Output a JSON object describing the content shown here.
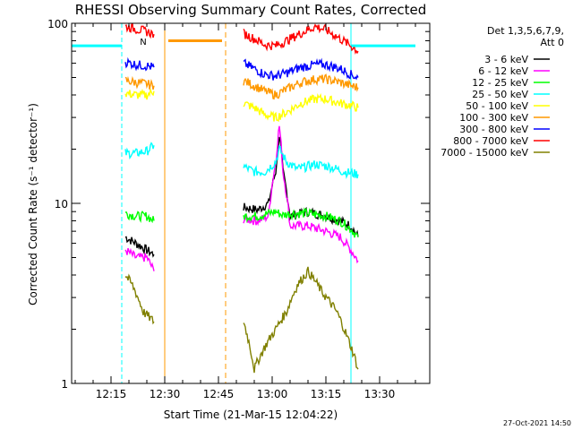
{
  "chart_data": {
    "type": "line",
    "title": "RHESSI Observing Summary Count Rates, Corrected",
    "xlabel": "Start Time (21-Mar-15 12:04:22)",
    "ylabel": "Corrected Count Rate (s⁻¹ detector⁻¹)",
    "yscale": "log",
    "ylim": [
      1,
      100
    ],
    "xlim_minutes": [
      "12:04",
      "13:44"
    ],
    "xticks": [
      "12:15",
      "12:30",
      "12:45",
      "13:00",
      "13:15",
      "13:30"
    ],
    "yticks": [
      "1",
      "10",
      "100"
    ],
    "legend_header": [
      "Det 1,3,5,6,7,9,",
      "Att 0"
    ],
    "legend_placement": "right",
    "flag_label": "N",
    "timestamp": "27-Oct-2021 14:50",
    "series": [
      {
        "name": "3 - 6 keV",
        "color": "#000000",
        "points": [
          [
            "12:19",
            6.5
          ],
          [
            "12:22",
            6.0
          ],
          [
            "12:25",
            5.5
          ],
          [
            "12:27",
            5.2
          ],
          [
            "12:52",
            9.5
          ],
          [
            "12:56",
            9.2
          ],
          [
            "12:59",
            10
          ],
          [
            "13:01",
            15
          ],
          [
            "13:02",
            24
          ],
          [
            "13:03",
            15
          ],
          [
            "13:05",
            8.5
          ],
          [
            "13:10",
            9
          ],
          [
            "13:15",
            8.5
          ],
          [
            "13:19",
            8
          ],
          [
            "13:22",
            7.5
          ],
          [
            "13:24",
            6.5
          ]
        ]
      },
      {
        "name": "6 - 12 keV",
        "color": "#ff00ff",
        "points": [
          [
            "12:19",
            5.5
          ],
          [
            "12:22",
            5.0
          ],
          [
            "12:25",
            5.0
          ],
          [
            "12:27",
            4.2
          ],
          [
            "12:52",
            8.2
          ],
          [
            "12:56",
            8.0
          ],
          [
            "12:59",
            8.5
          ],
          [
            "13:01",
            17
          ],
          [
            "13:02",
            27
          ],
          [
            "13:03",
            15
          ],
          [
            "13:05",
            7.5
          ],
          [
            "13:10",
            7.5
          ],
          [
            "13:15",
            7.0
          ],
          [
            "13:19",
            6.5
          ],
          [
            "13:22",
            5.5
          ],
          [
            "13:24",
            4.8
          ]
        ]
      },
      {
        "name": "12 - 25 keV",
        "color": "#00ff00",
        "points": [
          [
            "12:19",
            8.8
          ],
          [
            "12:22",
            8.5
          ],
          [
            "12:25",
            8.5
          ],
          [
            "12:27",
            8.0
          ],
          [
            "12:52",
            8.5
          ],
          [
            "12:56",
            8.5
          ],
          [
            "12:59",
            8.8
          ],
          [
            "13:01",
            9.0
          ],
          [
            "13:03",
            8.6
          ],
          [
            "13:05",
            8.8
          ],
          [
            "13:10",
            8.8
          ],
          [
            "13:15",
            8.5
          ],
          [
            "13:19",
            8.0
          ],
          [
            "13:22",
            7.2
          ],
          [
            "13:24",
            6.5
          ]
        ]
      },
      {
        "name": "25 - 50 keV",
        "color": "#00ffff",
        "points": [
          [
            "12:19",
            19
          ],
          [
            "12:22",
            19
          ],
          [
            "12:25",
            19.5
          ],
          [
            "12:27",
            21
          ],
          [
            "12:52",
            16
          ],
          [
            "12:55",
            15
          ],
          [
            "12:58",
            15
          ],
          [
            "13:01",
            17
          ],
          [
            "13:02",
            20
          ],
          [
            "13:04",
            17
          ],
          [
            "13:07",
            15.5
          ],
          [
            "13:12",
            16.5
          ],
          [
            "13:16",
            16
          ],
          [
            "13:20",
            15
          ],
          [
            "13:24",
            14.5
          ]
        ]
      },
      {
        "name": "50 - 100 keV",
        "color": "#ffff00",
        "points": [
          [
            "12:19",
            41
          ],
          [
            "12:22",
            40
          ],
          [
            "12:25",
            40
          ],
          [
            "12:27",
            42
          ],
          [
            "12:52",
            36
          ],
          [
            "12:55",
            34
          ],
          [
            "12:58",
            31
          ],
          [
            "13:01",
            30
          ],
          [
            "13:04",
            32
          ],
          [
            "13:08",
            36
          ],
          [
            "13:12",
            38
          ],
          [
            "13:15",
            38
          ],
          [
            "13:19",
            36
          ],
          [
            "13:22",
            35
          ],
          [
            "13:24",
            34
          ]
        ]
      },
      {
        "name": "100 - 300 keV",
        "color": "#ff9900",
        "points": [
          [
            "12:19",
            48
          ],
          [
            "12:22",
            47
          ],
          [
            "12:25",
            46
          ],
          [
            "12:27",
            45
          ],
          [
            "12:52",
            48
          ],
          [
            "12:55",
            45
          ],
          [
            "12:58",
            42
          ],
          [
            "13:01",
            40
          ],
          [
            "13:04",
            43
          ],
          [
            "13:08",
            47
          ],
          [
            "13:12",
            49
          ],
          [
            "13:15",
            49
          ],
          [
            "13:19",
            47
          ],
          [
            "13:22",
            45
          ],
          [
            "13:24",
            44
          ]
        ]
      },
      {
        "name": "300 - 800 keV",
        "color": "#0000ff",
        "points": [
          [
            "12:19",
            61
          ],
          [
            "12:22",
            59
          ],
          [
            "12:25",
            58
          ],
          [
            "12:27",
            57
          ],
          [
            "12:52",
            60
          ],
          [
            "12:55",
            56
          ],
          [
            "12:58",
            52
          ],
          [
            "13:01",
            51
          ],
          [
            "13:04",
            53
          ],
          [
            "13:08",
            57
          ],
          [
            "13:12",
            59
          ],
          [
            "13:15",
            59
          ],
          [
            "13:19",
            56
          ],
          [
            "13:22",
            52
          ],
          [
            "13:24",
            50
          ]
        ]
      },
      {
        "name": "800 - 7000 keV",
        "color": "#ff0000",
        "points": [
          [
            "12:19",
            96
          ],
          [
            "12:22",
            93
          ],
          [
            "12:25",
            90
          ],
          [
            "12:27",
            87
          ],
          [
            "12:52",
            88
          ],
          [
            "12:55",
            82
          ],
          [
            "12:58",
            76
          ],
          [
            "13:01",
            75
          ],
          [
            "13:04",
            80
          ],
          [
            "13:08",
            88
          ],
          [
            "13:12",
            96
          ],
          [
            "13:15",
            92
          ],
          [
            "13:19",
            82
          ],
          [
            "13:22",
            75
          ],
          [
            "13:24",
            70
          ]
        ]
      },
      {
        "name": "7000 - 15000 keV",
        "color": "#808000",
        "points": [
          [
            "12:19",
            4.0
          ],
          [
            "12:21",
            3.5
          ],
          [
            "12:24",
            2.5
          ],
          [
            "12:27",
            2.2
          ],
          [
            "12:52",
            2.2
          ],
          [
            "12:55",
            1.2
          ],
          [
            "12:58",
            1.6
          ],
          [
            "13:01",
            2.0
          ],
          [
            "13:04",
            2.5
          ],
          [
            "13:07",
            3.5
          ],
          [
            "13:10",
            4.2
          ],
          [
            "13:14",
            3.2
          ],
          [
            "13:18",
            2.5
          ],
          [
            "13:21",
            1.8
          ],
          [
            "13:24",
            1.2
          ]
        ]
      }
    ],
    "attenuator_state": [
      {
        "from": "12:04",
        "to": "12:18",
        "level": 75
      },
      {
        "from": "12:31",
        "to": "12:46",
        "level": 80
      },
      {
        "from": "13:22",
        "to": "13:40",
        "level": 75
      }
    ],
    "night_intervals": [
      [
        "12:04",
        "12:18"
      ],
      [
        "13:22",
        "13:44"
      ]
    ],
    "saa_intervals": [
      [
        "12:30",
        "12:47"
      ]
    ]
  }
}
